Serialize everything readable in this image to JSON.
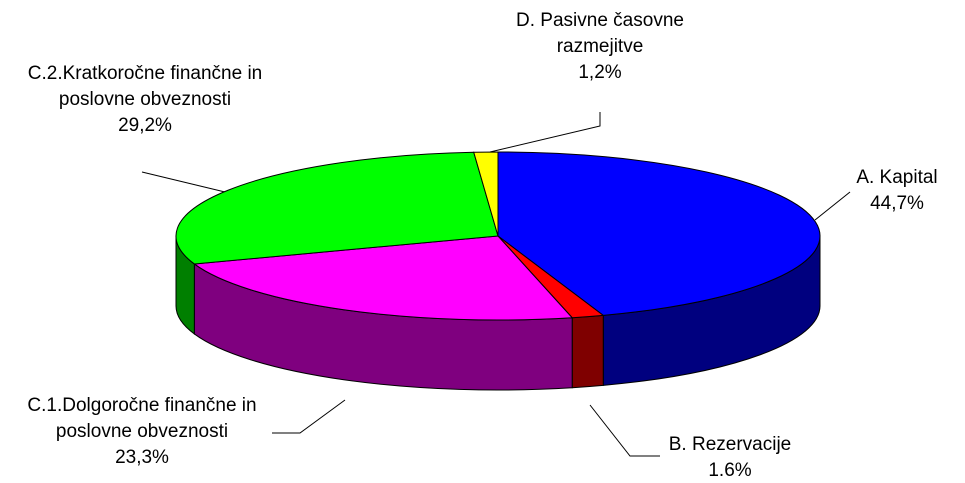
{
  "chart_data": {
    "type": "pie3d",
    "categories": [
      "A. Kapital",
      "B. Rezervacije",
      "C.1.Dolgoročne finančne in poslovne obveznosti",
      "C.2.Kratkoročne finančne in poslovne obveznosti",
      "D. Pasivne časovne razmejitve"
    ],
    "values": [
      44.7,
      1.6,
      23.3,
      29.2,
      1.2
    ],
    "value_labels": [
      "44,7%",
      "1.6%",
      "23,3%",
      "29,2%",
      "1,2%"
    ],
    "colors": [
      "#0000ff",
      "#ff0000",
      "#ff00ff",
      "#00ff00",
      "#ffff00"
    ]
  }
}
